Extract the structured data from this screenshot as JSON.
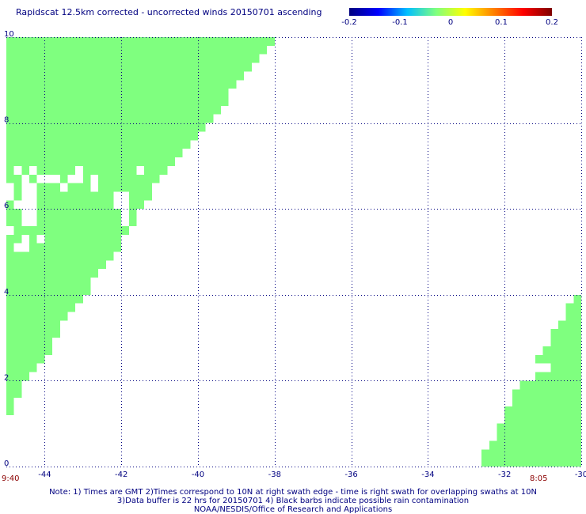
{
  "title": "Rapidscat 12.5km corrected - uncorrected winds 20150701 ascending",
  "colorbar": {
    "ticks": [
      "-0.2",
      "-0.1",
      "0",
      "0.1",
      "0.2"
    ],
    "colors": [
      "#00007f",
      "#0000ff",
      "#00bfff",
      "#7fff7f",
      "#ffff00",
      "#ff7f00",
      "#ff0000",
      "#7f0000"
    ]
  },
  "time_labels": {
    "left": "9:40",
    "right": "8:05"
  },
  "notes": [
    "Note: 1) Times are GMT 2)Times correspond to 10N at right swath edge - time is right swath for overlapping swaths at 10N",
    "3)Data buffer is 22 hrs for 20150701 4) Black barbs indicate possible rain contamination",
    "NOAA/NESDIS/Office of Research and Applications"
  ],
  "chart_data": {
    "type": "heatmap",
    "x_ticks": [
      "-44",
      "-42",
      "-40",
      "-38",
      "-36",
      "-34",
      "-32",
      "-30"
    ],
    "y_ticks": [
      "0",
      "2",
      "4",
      "6",
      "8",
      "10"
    ],
    "xlim": [
      -45,
      -30
    ],
    "ylim": [
      0,
      10
    ],
    "grid": true,
    "fill_color": "#7fff7f",
    "cell_size": 0.2,
    "west_swath": [
      [
        10.0,
        -45.0,
        -38.0
      ],
      [
        9.8,
        -45.0,
        -38.2
      ],
      [
        9.6,
        -45.0,
        -38.4
      ],
      [
        9.4,
        -45.0,
        -38.6
      ],
      [
        9.2,
        -45.0,
        -38.8
      ],
      [
        9.0,
        -45.0,
        -39.0
      ],
      [
        8.8,
        -45.0,
        -39.2
      ],
      [
        8.6,
        -45.0,
        -39.2
      ],
      [
        8.4,
        -45.0,
        -39.4
      ],
      [
        8.2,
        -45.0,
        -39.6
      ],
      [
        8.0,
        -45.0,
        -39.8
      ],
      [
        7.8,
        -45.0,
        -40.0
      ],
      [
        7.6,
        -45.0,
        -40.2
      ],
      [
        7.4,
        -45.0,
        -40.4
      ],
      [
        7.2,
        -45.0,
        -40.6
      ],
      [
        7.0,
        -45.0,
        -40.8
      ],
      [
        6.8,
        -45.0,
        -41.0
      ],
      [
        6.6,
        -45.0,
        -41.2
      ],
      [
        6.4,
        -45.0,
        -41.2
      ],
      [
        6.2,
        -45.0,
        -41.4
      ],
      [
        6.0,
        -45.0,
        -41.6
      ],
      [
        5.8,
        -45.0,
        -41.6
      ],
      [
        5.6,
        -45.0,
        -41.8
      ],
      [
        5.4,
        -45.0,
        -42.0
      ],
      [
        5.2,
        -45.0,
        -42.0
      ],
      [
        5.0,
        -45.0,
        -42.2
      ],
      [
        4.8,
        -45.0,
        -42.4
      ],
      [
        4.6,
        -45.0,
        -42.6
      ],
      [
        4.4,
        -45.0,
        -42.8
      ],
      [
        4.2,
        -45.0,
        -42.8
      ],
      [
        4.0,
        -45.0,
        -43.0
      ],
      [
        3.8,
        -45.0,
        -43.2
      ],
      [
        3.6,
        -45.0,
        -43.4
      ],
      [
        3.4,
        -45.0,
        -43.6
      ],
      [
        3.2,
        -45.0,
        -43.6
      ],
      [
        3.0,
        -45.0,
        -43.8
      ],
      [
        2.8,
        -45.0,
        -43.8
      ],
      [
        2.6,
        -45.0,
        -44.0
      ],
      [
        2.4,
        -45.0,
        -44.2
      ],
      [
        2.2,
        -45.0,
        -44.4
      ],
      [
        2.0,
        -45.0,
        -44.6
      ],
      [
        1.8,
        -45.0,
        -44.6
      ],
      [
        1.6,
        -45.0,
        -44.8
      ],
      [
        1.4,
        -45.0,
        -44.8
      ],
      [
        1.2,
        -45.0,
        -45.0
      ],
      [
        1.0,
        -45.0,
        -45.0
      ],
      [
        0.8,
        -45.0,
        -45.2
      ],
      [
        0.6,
        -45.0,
        -45.4
      ],
      [
        0.4,
        -45.0,
        -45.6
      ]
    ],
    "west_gaps": [
      [
        7.0,
        -44.8,
        -44.6
      ],
      [
        7.0,
        -44.4,
        -44.2
      ],
      [
        7.0,
        -43.2,
        -43.0
      ],
      [
        7.0,
        -41.6,
        -41.4
      ],
      [
        6.8,
        -44.6,
        -44.4
      ],
      [
        6.8,
        -44.2,
        -43.6
      ],
      [
        6.8,
        -43.4,
        -43.0
      ],
      [
        6.8,
        -42.8,
        -42.6
      ],
      [
        6.6,
        -45.0,
        -44.8
      ],
      [
        6.6,
        -44.6,
        -44.2
      ],
      [
        6.6,
        -43.6,
        -43.4
      ],
      [
        6.6,
        -42.8,
        -42.6
      ],
      [
        6.4,
        -45.0,
        -44.8
      ],
      [
        6.4,
        -44.6,
        -44.2
      ],
      [
        6.4,
        -42.2,
        -41.8
      ],
      [
        6.2,
        -44.8,
        -44.2
      ],
      [
        6.2,
        -42.2,
        -41.8
      ],
      [
        6.0,
        -44.6,
        -44.2
      ],
      [
        6.0,
        -42.0,
        -41.8
      ],
      [
        5.8,
        -44.6,
        -44.2
      ],
      [
        5.8,
        -42.0,
        -41.8
      ],
      [
        5.6,
        -45.0,
        -44.8
      ],
      [
        5.4,
        -44.6,
        -44.4
      ],
      [
        5.4,
        -44.2,
        -44.0
      ],
      [
        5.2,
        -44.8,
        -44.4
      ]
    ],
    "east_swath": [
      [
        4.0,
        -30.2,
        -30.0
      ],
      [
        3.8,
        -30.4,
        -30.0
      ],
      [
        3.6,
        -30.4,
        -30.0
      ],
      [
        3.4,
        -30.6,
        -30.0
      ],
      [
        3.2,
        -30.8,
        -30.0
      ],
      [
        3.0,
        -30.8,
        -30.0
      ],
      [
        2.8,
        -31.0,
        -30.0
      ],
      [
        2.6,
        -31.2,
        -30.0
      ],
      [
        2.4,
        -31.2,
        -30.0
      ],
      [
        2.2,
        -31.4,
        -30.0
      ],
      [
        2.0,
        -31.6,
        -30.0
      ],
      [
        1.8,
        -31.8,
        -30.0
      ],
      [
        1.6,
        -31.8,
        -30.0
      ],
      [
        1.4,
        -32.0,
        -30.0
      ],
      [
        1.2,
        -32.0,
        -30.0
      ],
      [
        1.0,
        -32.2,
        -30.0
      ],
      [
        0.8,
        -32.2,
        -30.0
      ],
      [
        0.6,
        -32.4,
        -30.0
      ],
      [
        0.4,
        -32.6,
        -30.0
      ],
      [
        0.2,
        -32.6,
        -30.0
      ]
    ],
    "east_gaps": [
      [
        2.4,
        -31.2,
        -30.8
      ],
      [
        2.2,
        -31.4,
        -31.2
      ]
    ]
  }
}
